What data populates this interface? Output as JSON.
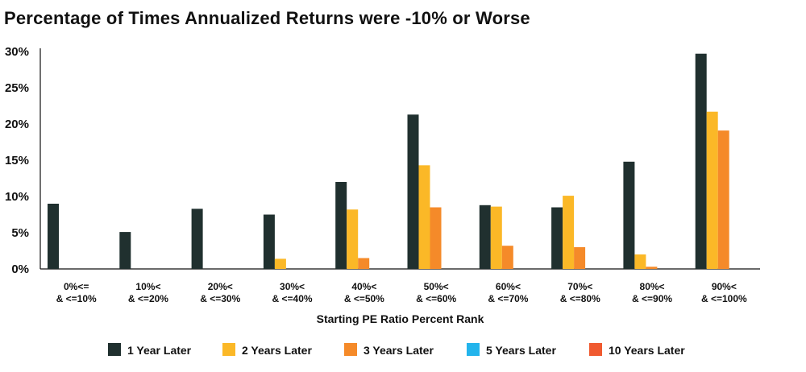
{
  "chart_data": {
    "type": "bar",
    "title": "Percentage of Times Annualized Returns were -10% or Worse",
    "xlabel": "Starting PE Ratio Percent Rank",
    "ylabel": "",
    "ylim": [
      0,
      30
    ],
    "yticks": [
      "0%",
      "5%",
      "10%",
      "15%",
      "20%",
      "25%",
      "30%"
    ],
    "categories": [
      [
        "0%<=",
        "& <=10%"
      ],
      [
        "10%<",
        "& <=20%"
      ],
      [
        "20%<",
        "& <=30%"
      ],
      [
        "30%<",
        "& <=40%"
      ],
      [
        "40%<",
        "& <=50%"
      ],
      [
        "50%<",
        "& <=60%"
      ],
      [
        "60%<",
        "& <=70%"
      ],
      [
        "70%<",
        "& <=80%"
      ],
      [
        "80%<",
        "& <=90%"
      ],
      [
        "90%<",
        "& <=100%"
      ]
    ],
    "series": [
      {
        "name": "1 Year Later",
        "color": "#20302f",
        "values": [
          9.0,
          5.1,
          8.3,
          7.5,
          12.0,
          21.3,
          8.8,
          8.5,
          14.8,
          29.7
        ]
      },
      {
        "name": "2 Years Later",
        "color": "#fbb827",
        "values": [
          0,
          0,
          0,
          1.4,
          8.2,
          14.3,
          8.6,
          10.1,
          2.0,
          21.7
        ]
      },
      {
        "name": "3 Years Later",
        "color": "#f58a29",
        "values": [
          0,
          0,
          0,
          0,
          1.5,
          8.5,
          3.2,
          3.0,
          0.3,
          19.1
        ]
      },
      {
        "name": "5 Years Later",
        "color": "#23b4ec",
        "values": [
          0,
          0,
          0,
          0,
          0,
          0,
          0,
          0,
          0,
          0
        ]
      },
      {
        "name": "10 Years Later",
        "color": "#f05a30",
        "values": [
          0,
          0,
          0,
          0,
          0,
          0,
          0,
          0,
          0,
          0
        ]
      }
    ],
    "grid": false,
    "legend_position": "bottom"
  }
}
